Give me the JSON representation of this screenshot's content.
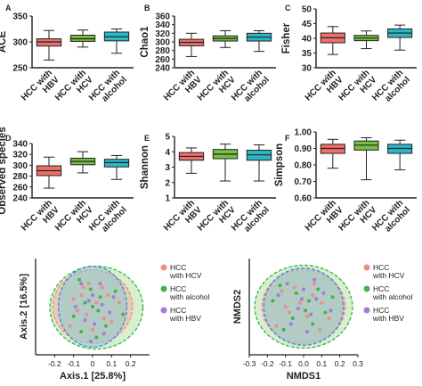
{
  "colors": {
    "hbv": "#ee6f6a",
    "hcv": "#76c043",
    "alcohol": "#2cb7c6",
    "pcoa_hcv": "#f08d85",
    "pcoa_alcohol": "#4cae4c",
    "pcoa_hbv": "#a67ad8",
    "ellipse_green": "#2db83d",
    "ellipse_blue": "#5a7be0"
  },
  "chart_data": [
    {
      "id": "A",
      "type": "boxplot",
      "panel_label": "A",
      "ylabel": "ACE",
      "ylim": [
        250,
        350
      ],
      "yticks": [
        250,
        300,
        350
      ],
      "categories": [
        "HCC with HBV",
        "HCC with HCV",
        "HCC with alcohol"
      ],
      "category_lines": [
        [
          "HCC with",
          "HBV"
        ],
        [
          "HCC with",
          "HCV"
        ],
        [
          "HCC with",
          "alcohol"
        ]
      ],
      "boxes": [
        {
          "min": 265,
          "q1": 292,
          "median": 300,
          "q3": 306,
          "max": 322
        },
        {
          "min": 290,
          "q1": 301,
          "median": 306,
          "q3": 313,
          "max": 323
        },
        {
          "min": 278,
          "q1": 302,
          "median": 310,
          "q3": 319,
          "max": 325
        }
      ]
    },
    {
      "id": "B",
      "type": "boxplot",
      "panel_label": "B",
      "ylabel": "Chao1",
      "ylim": [
        240,
        360
      ],
      "yticks": [
        240,
        260,
        280,
        300,
        320,
        340,
        360
      ],
      "categories": [
        "HCC with HBV",
        "HCC with HCV",
        "HCC with alcohol"
      ],
      "category_lines": [
        [
          "HCC with",
          "HBV"
        ],
        [
          "HCC with",
          "HCV"
        ],
        [
          "HCC with",
          "alcohol"
        ]
      ],
      "boxes": [
        {
          "min": 266,
          "q1": 291,
          "median": 299,
          "q3": 306,
          "max": 320
        },
        {
          "min": 287,
          "q1": 302,
          "median": 308,
          "q3": 314,
          "max": 326
        },
        {
          "min": 278,
          "q1": 302,
          "median": 311,
          "q3": 320,
          "max": 326
        }
      ]
    },
    {
      "id": "C",
      "type": "boxplot",
      "panel_label": "C",
      "ylabel": "Fisher",
      "ylim": [
        30,
        50
      ],
      "yticks": [
        30,
        35,
        40,
        45,
        50
      ],
      "categories": [
        "HCC with HBV",
        "HCC with HCV",
        "HCC with alcohol"
      ],
      "category_lines": [
        [
          "HCC with",
          "HBV"
        ],
        [
          "HCC with",
          "HCV"
        ],
        [
          "HCC with",
          "alcohol"
        ]
      ],
      "boxes": [
        {
          "min": 34.5,
          "q1": 38.5,
          "median": 40.2,
          "q3": 41.8,
          "max": 44
        },
        {
          "min": 36.5,
          "q1": 39.2,
          "median": 40.1,
          "q3": 41,
          "max": 42.5
        },
        {
          "min": 36,
          "q1": 40.3,
          "median": 41.8,
          "q3": 43.2,
          "max": 44.5
        }
      ]
    },
    {
      "id": "D",
      "type": "boxplot",
      "panel_label": "D",
      "ylabel": "Observed species",
      "ylim": [
        240,
        340
      ],
      "yticks": [
        240,
        260,
        280,
        300,
        320,
        340
      ],
      "categories": [
        "HCC with HBV",
        "HCC with HCV",
        "HCC with alcohol"
      ],
      "category_lines": [
        [
          "HCC with",
          "HBV"
        ],
        [
          "HCC with",
          "HCV"
        ],
        [
          "HCC with",
          "alcohol"
        ]
      ],
      "boxes": [
        {
          "min": 258,
          "q1": 281,
          "median": 290,
          "q3": 299,
          "max": 315
        },
        {
          "min": 286,
          "q1": 301,
          "median": 307,
          "q3": 313,
          "max": 325
        },
        {
          "min": 274,
          "q1": 297,
          "median": 305,
          "q3": 311,
          "max": 318
        }
      ]
    },
    {
      "id": "E",
      "type": "boxplot",
      "panel_label": "E",
      "ylabel": "Shannon",
      "ylim": [
        1,
        5
      ],
      "yticks": [
        1,
        2,
        3,
        4,
        5
      ],
      "categories": [
        "HCC with HBV",
        "HCC with HCV",
        "HCC with alcohol"
      ],
      "category_lines": [
        [
          "HCC with",
          "HBV"
        ],
        [
          "HCC with",
          "HCV"
        ],
        [
          "HCC with",
          "alcohol"
        ]
      ],
      "boxes": [
        {
          "min": 2.6,
          "q1": 3.45,
          "median": 3.7,
          "q3": 3.95,
          "max": 4.25
        },
        {
          "min": 2.1,
          "q1": 3.55,
          "median": 3.85,
          "q3": 4.15,
          "max": 4.5
        },
        {
          "min": 2.1,
          "q1": 3.45,
          "median": 3.8,
          "q3": 4.1,
          "max": 4.45
        }
      ]
    },
    {
      "id": "F",
      "type": "boxplot",
      "panel_label": "F",
      "ylabel": "Simpson",
      "ylim": [
        0.6,
        1.0
      ],
      "yticks": [
        0.6,
        0.7,
        0.8,
        0.9,
        1.0
      ],
      "ytick_labels": [
        "0.60",
        "0.70",
        "0.80",
        "0.90",
        "1.00"
      ],
      "categories": [
        "HCC with HBV",
        "HCC with HCV",
        "HCC with alcohol"
      ],
      "category_lines": [
        [
          "HCC with",
          "HBV"
        ],
        [
          "HCC with",
          "HCV"
        ],
        [
          "HCC with",
          "alcohol"
        ]
      ],
      "boxes": [
        {
          "min": 0.78,
          "q1": 0.87,
          "median": 0.9,
          "q3": 0.925,
          "max": 0.955
        },
        {
          "min": 0.71,
          "q1": 0.89,
          "median": 0.92,
          "q3": 0.945,
          "max": 0.965
        },
        {
          "min": 0.77,
          "q1": 0.87,
          "median": 0.9,
          "q3": 0.925,
          "max": 0.95
        }
      ]
    },
    {
      "id": "PCoA",
      "type": "scatter",
      "xlabel": "Axis.1 [25.8%]",
      "ylabel": "Axis.2 [16.5%]",
      "xlim": [
        -0.3,
        0.3
      ],
      "ylim": [
        -0.25,
        0.25
      ],
      "xticks": [
        -0.2,
        -0.1,
        0,
        0.1,
        0.2
      ],
      "xtick_labels": [
        "-0.2",
        "-0.1",
        "0",
        "0.1",
        "0.2"
      ],
      "legend_position": "right",
      "legend": [
        {
          "lines": [
            "HCC",
            "with HCV"
          ],
          "color_key": "pcoa_hcv"
        },
        {
          "lines": [
            "HCC",
            "with alcohol"
          ],
          "color_key": "pcoa_alcohol"
        },
        {
          "lines": [
            "HCC",
            "with HBV"
          ],
          "color_key": "pcoa_hbv"
        }
      ],
      "ellipses": [
        {
          "group": "alcohol",
          "cx": 0.02,
          "cy": -0.005,
          "rx": 0.245,
          "ry": 0.215,
          "fill": "#b8e0a6",
          "stroke_key": "ellipse_green"
        },
        {
          "group": "hcv",
          "cx": 0.0,
          "cy": 0.0,
          "rx": 0.21,
          "ry": 0.19,
          "fill": "#e9b59f",
          "stroke_key": "pcoa_hcv"
        },
        {
          "group": "hbv",
          "cx": 0.0,
          "cy": 0.0,
          "rx": 0.18,
          "ry": 0.21,
          "fill": "#8cc9d3",
          "stroke_key": "ellipse_blue"
        }
      ],
      "points": {
        "hcv": [
          [
            -0.05,
            0.1
          ],
          [
            -0.02,
            0.12
          ],
          [
            0.05,
            0.1
          ],
          [
            0.08,
            0.06
          ],
          [
            -0.1,
            0.04
          ],
          [
            0.02,
            0.02
          ],
          [
            -0.03,
            -0.04
          ],
          [
            0.06,
            -0.06
          ],
          [
            -0.12,
            -0.1
          ],
          [
            0.1,
            -0.08
          ],
          [
            -0.06,
            0.06
          ],
          [
            0.0,
            -0.12
          ],
          [
            0.14,
            0.02
          ],
          [
            -0.08,
            -0.02
          ]
        ],
        "alcohol": [
          [
            -0.07,
            0.14
          ],
          [
            -0.01,
            0.09
          ],
          [
            0.04,
            0.05
          ],
          [
            -0.04,
            0.02
          ],
          [
            0.0,
            0.0
          ],
          [
            0.03,
            -0.02
          ],
          [
            -0.1,
            -0.05
          ],
          [
            0.07,
            -0.1
          ],
          [
            0.12,
            0.08
          ],
          [
            -0.06,
            -0.13
          ],
          [
            0.02,
            -0.16
          ],
          [
            0.16,
            -0.04
          ]
        ],
        "hbv": [
          [
            -0.06,
            0.12
          ],
          [
            0.0,
            0.06
          ],
          [
            -0.02,
            0.03
          ],
          [
            0.05,
            0.01
          ],
          [
            0.09,
            -0.03
          ],
          [
            -0.04,
            -0.07
          ],
          [
            0.01,
            -0.09
          ],
          [
            0.04,
            0.12
          ],
          [
            -0.09,
            0.0
          ],
          [
            0.11,
            0.05
          ],
          [
            -0.01,
            -0.18
          ],
          [
            0.06,
            -0.14
          ]
        ]
      }
    },
    {
      "id": "NMDS",
      "type": "scatter",
      "xlabel": "NMDS1",
      "ylabel": "NMDS2",
      "xlim": [
        -0.3,
        0.3
      ],
      "ylim": [
        -0.25,
        0.25
      ],
      "xticks": [
        -0.3,
        -0.2,
        -0.1,
        0.0,
        0.1,
        0.2,
        0.3
      ],
      "xtick_labels": [
        "-0.3",
        "-0.2",
        "-0.1",
        "0.0",
        "0.1",
        "0.2",
        "0.3"
      ],
      "legend_position": "right",
      "legend": [
        {
          "lines": [
            "HCC",
            "with HCV"
          ],
          "color_key": "pcoa_hcv"
        },
        {
          "lines": [
            "HCC",
            "with alcohol"
          ],
          "color_key": "pcoa_alcohol"
        },
        {
          "lines": [
            "HCC",
            "with HBV"
          ],
          "color_key": "pcoa_hbv"
        }
      ],
      "ellipses": [
        {
          "group": "alcohol",
          "cx": 0.0,
          "cy": 0.0,
          "rx": 0.27,
          "ry": 0.215,
          "fill": "#b8e0a6",
          "stroke_key": "ellipse_green"
        },
        {
          "group": "hcv",
          "cx": 0.0,
          "cy": 0.0,
          "rx": 0.23,
          "ry": 0.19,
          "fill": "#e9b59f",
          "stroke_key": "pcoa_hcv"
        },
        {
          "group": "hbv",
          "cx": 0.0,
          "cy": 0.0,
          "rx": 0.22,
          "ry": 0.2,
          "fill": "#8cc9d3",
          "stroke_key": "ellipse_blue"
        }
      ],
      "points": {
        "hcv": [
          [
            -0.12,
            0.08
          ],
          [
            -0.05,
            0.1
          ],
          [
            0.05,
            0.06
          ],
          [
            0.1,
            0.02
          ],
          [
            -0.08,
            -0.03
          ],
          [
            0.02,
            -0.05
          ],
          [
            0.14,
            -0.06
          ],
          [
            -0.15,
            -0.1
          ],
          [
            0.06,
            0.12
          ],
          [
            -0.02,
            0.02
          ],
          [
            0.09,
            -0.12
          ],
          [
            -0.1,
            0.0
          ]
        ],
        "alcohol": [
          [
            -0.13,
            0.11
          ],
          [
            -0.04,
            0.07
          ],
          [
            0.03,
            0.03
          ],
          [
            0.08,
            0.09
          ],
          [
            -0.06,
            -0.06
          ],
          [
            0.01,
            -0.02
          ],
          [
            0.12,
            -0.03
          ],
          [
            -0.11,
            -0.12
          ],
          [
            0.05,
            -0.09
          ],
          [
            0.16,
            0.05
          ],
          [
            -0.17,
            0.03
          ]
        ],
        "hbv": [
          [
            -0.09,
            0.12
          ],
          [
            0.0,
            0.09
          ],
          [
            0.07,
            0.04
          ],
          [
            -0.03,
            -0.01
          ],
          [
            0.04,
            -0.04
          ],
          [
            -0.07,
            -0.09
          ],
          [
            0.11,
            0.07
          ],
          [
            0.02,
            -0.13
          ],
          [
            -0.14,
            0.06
          ],
          [
            0.15,
            -0.02
          ],
          [
            -0.01,
            0.04
          ],
          [
            0.06,
            0.14
          ]
        ]
      }
    }
  ]
}
